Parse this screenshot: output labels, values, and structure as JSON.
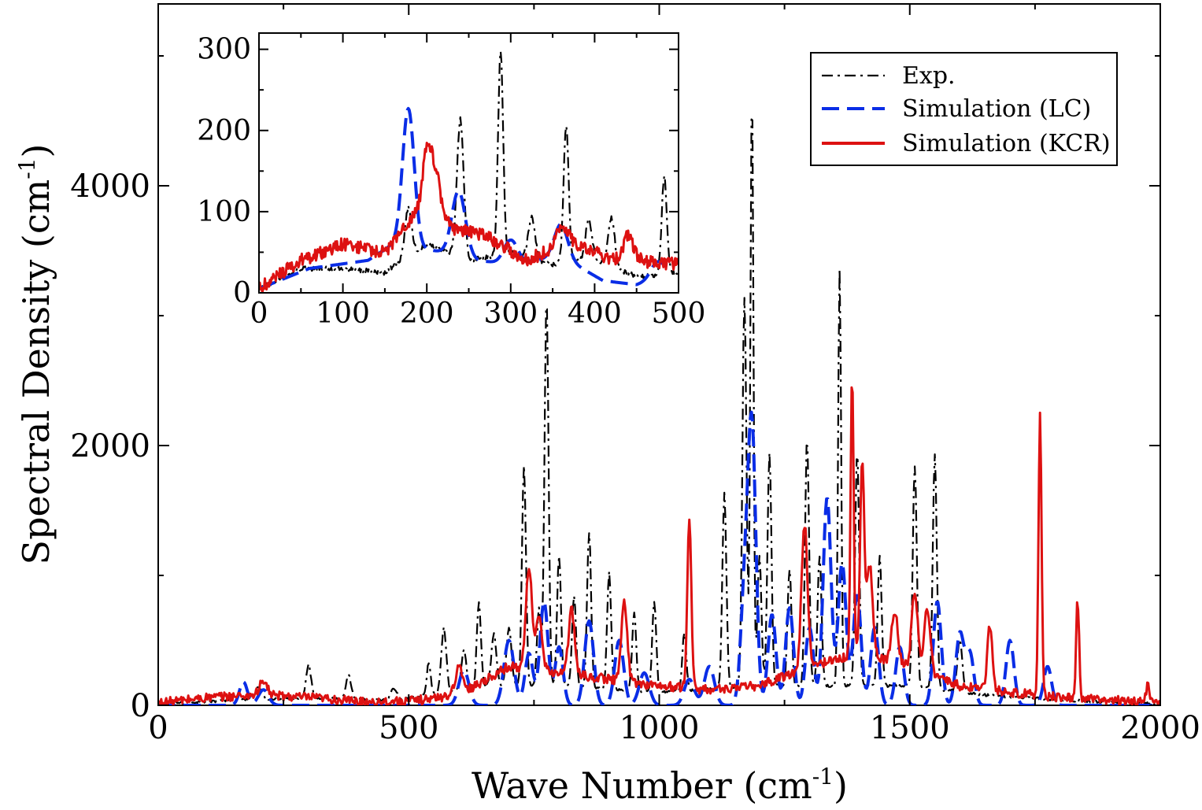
{
  "chart_data": [
    {
      "id": "main",
      "type": "line",
      "title": "",
      "xlabel": "Wave Number (cm",
      "xlabel_sup": "-1",
      "xlabel_end": ")",
      "ylabel": "Spectral Density (cm",
      "ylabel_sup": "-1",
      "ylabel_end": ")",
      "xlim": [
        0,
        2000
      ],
      "ylim": [
        0,
        5400
      ],
      "x_ticks": [
        {
          "value": 0,
          "label": "0"
        },
        {
          "value": 500,
          "label": "500"
        },
        {
          "value": 1000,
          "label": "1000"
        },
        {
          "value": 1500,
          "label": "1500"
        },
        {
          "value": 2000,
          "label": "2000"
        }
      ],
      "y_ticks": [
        {
          "value": 0,
          "label": "0"
        },
        {
          "value": 2000,
          "label": "2000"
        },
        {
          "value": 4000,
          "label": "4000"
        }
      ],
      "grid": false,
      "legend_position": "top-right",
      "series": [
        {
          "name": "Exp.",
          "style": "dash-dot",
          "color": "#000000",
          "baseline": 40,
          "noise": 10,
          "background": [
            [
              0,
              10
            ],
            [
              150,
              40
            ],
            [
              300,
              60
            ],
            [
              450,
              40
            ],
            [
              550,
              80
            ],
            [
              650,
              150
            ],
            [
              800,
              150
            ],
            [
              1000,
              100
            ],
            [
              1200,
              150
            ],
            [
              1500,
              150
            ],
            [
              1650,
              80
            ],
            [
              1800,
              40
            ],
            [
              2000,
              10
            ]
          ],
          "peaks": [
            [
              200,
              100,
              6
            ],
            [
              300,
              250,
              5
            ],
            [
              380,
              180,
              5
            ],
            [
              470,
              80,
              6
            ],
            [
              540,
              250,
              4
            ],
            [
              570,
              500,
              5
            ],
            [
              610,
              300,
              5
            ],
            [
              640,
              660,
              4
            ],
            [
              670,
              400,
              5
            ],
            [
              700,
              450,
              5
            ],
            [
              730,
              1700,
              4
            ],
            [
              760,
              600,
              4
            ],
            [
              775,
              3000,
              4
            ],
            [
              800,
              1000,
              4
            ],
            [
              830,
              700,
              4
            ],
            [
              860,
              1200,
              4
            ],
            [
              900,
              900,
              4
            ],
            [
              950,
              600,
              4
            ],
            [
              990,
              700,
              4
            ],
            [
              1050,
              450,
              4
            ],
            [
              1130,
              1500,
              4
            ],
            [
              1170,
              3000,
              4
            ],
            [
              1185,
              4600,
              3
            ],
            [
              1200,
              1000,
              4
            ],
            [
              1220,
              1800,
              4
            ],
            [
              1260,
              900,
              4
            ],
            [
              1295,
              1900,
              4
            ],
            [
              1320,
              1000,
              4
            ],
            [
              1360,
              3200,
              3
            ],
            [
              1395,
              1800,
              4
            ],
            [
              1440,
              1000,
              4
            ],
            [
              1510,
              1700,
              4
            ],
            [
              1550,
              1800,
              4
            ],
            [
              1600,
              400,
              5
            ]
          ]
        },
        {
          "name": "Simulation (LC)",
          "style": "dashed",
          "color": "#0a2de6",
          "baseline": 40,
          "noise": 0,
          "background": [
            [
              0,
              0
            ],
            [
              2000,
              0
            ]
          ],
          "peaks": [
            [
              170,
              180,
              8
            ],
            [
              210,
              120,
              10
            ],
            [
              610,
              270,
              10
            ],
            [
              700,
              500,
              10
            ],
            [
              740,
              400,
              8
            ],
            [
              770,
              800,
              8
            ],
            [
              800,
              450,
              8
            ],
            [
              860,
              650,
              9
            ],
            [
              920,
              500,
              9
            ],
            [
              970,
              250,
              10
            ],
            [
              1060,
              200,
              10
            ],
            [
              1100,
              300,
              10
            ],
            [
              1170,
              800,
              8
            ],
            [
              1185,
              2100,
              8
            ],
            [
              1225,
              700,
              8
            ],
            [
              1260,
              750,
              8
            ],
            [
              1300,
              600,
              8
            ],
            [
              1335,
              1600,
              8
            ],
            [
              1365,
              1100,
              8
            ],
            [
              1395,
              850,
              8
            ],
            [
              1430,
              600,
              8
            ],
            [
              1480,
              450,
              8
            ],
            [
              1555,
              800,
              8
            ],
            [
              1600,
              550,
              8
            ],
            [
              1620,
              400,
              8
            ],
            [
              1700,
              500,
              8
            ],
            [
              1775,
              300,
              8
            ]
          ]
        },
        {
          "name": "Simulation (KCR)",
          "style": "solid",
          "color": "#dd1111",
          "baseline": 40,
          "noise": 35,
          "background": [
            [
              0,
              20
            ],
            [
              100,
              60
            ],
            [
              200,
              80
            ],
            [
              300,
              60
            ],
            [
              400,
              30
            ],
            [
              500,
              30
            ],
            [
              600,
              80
            ],
            [
              700,
              300
            ],
            [
              800,
              250
            ],
            [
              900,
              200
            ],
            [
              1000,
              150
            ],
            [
              1100,
              120
            ],
            [
              1200,
              150
            ],
            [
              1300,
              300
            ],
            [
              1400,
              400
            ],
            [
              1500,
              300
            ],
            [
              1600,
              150
            ],
            [
              1700,
              100
            ],
            [
              1800,
              60
            ],
            [
              2000,
              20
            ]
          ],
          "peaks": [
            [
              210,
              100,
              8
            ],
            [
              600,
              200,
              8
            ],
            [
              740,
              800,
              6
            ],
            [
              760,
              400,
              6
            ],
            [
              825,
              500,
              6
            ],
            [
              930,
              600,
              6
            ],
            [
              1060,
              1300,
              4
            ],
            [
              1290,
              1100,
              6
            ],
            [
              1385,
              2150,
              3
            ],
            [
              1405,
              1500,
              4
            ],
            [
              1420,
              700,
              6
            ],
            [
              1470,
              400,
              6
            ],
            [
              1510,
              600,
              6
            ],
            [
              1535,
              500,
              6
            ],
            [
              1660,
              500,
              5
            ],
            [
              1760,
              2150,
              3
            ],
            [
              1835,
              750,
              3
            ],
            [
              1975,
              150,
              3
            ]
          ]
        }
      ]
    },
    {
      "id": "inset",
      "type": "line",
      "title": "",
      "xlabel": "",
      "ylabel": "",
      "xlim": [
        0,
        500
      ],
      "ylim": [
        0,
        320
      ],
      "x_ticks": [
        {
          "value": 0,
          "label": "0"
        },
        {
          "value": 100,
          "label": "100"
        },
        {
          "value": 200,
          "label": "200"
        },
        {
          "value": 300,
          "label": "300"
        },
        {
          "value": 400,
          "label": "400"
        },
        {
          "value": 500,
          "label": "500"
        }
      ],
      "y_ticks": [
        {
          "value": 0,
          "label": "0"
        },
        {
          "value": 100,
          "label": "100"
        },
        {
          "value": 200,
          "label": "200"
        },
        {
          "value": 300,
          "label": "300"
        }
      ],
      "grid": false,
      "series": [
        {
          "name": "Exp.",
          "style": "dash-dot",
          "color": "#000000",
          "baseline": 0,
          "noise": 3,
          "background": [
            [
              0,
              5
            ],
            [
              50,
              30
            ],
            [
              100,
              30
            ],
            [
              150,
              25
            ],
            [
              200,
              60
            ],
            [
              250,
              40
            ],
            [
              300,
              50
            ],
            [
              350,
              35
            ],
            [
              400,
              40
            ],
            [
              450,
              20
            ],
            [
              500,
              25
            ]
          ],
          "peaks": [
            [
              178,
              60,
              4
            ],
            [
              240,
              170,
              4
            ],
            [
              288,
              250,
              3
            ],
            [
              325,
              50,
              4
            ],
            [
              366,
              170,
              3
            ],
            [
              393,
              50,
              4
            ],
            [
              420,
              60,
              4
            ],
            [
              483,
              120,
              3
            ]
          ]
        },
        {
          "name": "Simulation (LC)",
          "style": "dashed",
          "color": "#0a2de6",
          "baseline": 0,
          "noise": 0,
          "background": [
            [
              0,
              5
            ],
            [
              60,
              30
            ],
            [
              130,
              40
            ],
            [
              160,
              60
            ],
            [
              220,
              50
            ],
            [
              260,
              40
            ],
            [
              300,
              35
            ],
            [
              360,
              45
            ],
            [
              410,
              15
            ],
            [
              450,
              10
            ],
            [
              480,
              20
            ],
            [
              500,
              40
            ]
          ],
          "peaks": [
            [
              178,
              170,
              7
            ],
            [
              238,
              80,
              8
            ],
            [
              300,
              30,
              8
            ],
            [
              360,
              40,
              8
            ],
            [
              475,
              20,
              8
            ]
          ]
        },
        {
          "name": "Simulation (KCR)",
          "style": "solid",
          "color": "#dd1111",
          "baseline": 0,
          "noise": 8,
          "background": [
            [
              0,
              5
            ],
            [
              50,
              40
            ],
            [
              100,
              60
            ],
            [
              150,
              50
            ],
            [
              180,
              90
            ],
            [
              200,
              110
            ],
            [
              230,
              80
            ],
            [
              270,
              70
            ],
            [
              320,
              40
            ],
            [
              370,
              65
            ],
            [
              420,
              40
            ],
            [
              450,
              40
            ],
            [
              500,
              35
            ]
          ],
          "peaks": [
            [
              200,
              60,
              5
            ],
            [
              210,
              50,
              6
            ],
            [
              360,
              20,
              6
            ],
            [
              440,
              30,
              6
            ]
          ]
        }
      ]
    }
  ],
  "legend": [
    {
      "label": "Exp.",
      "style": "dash-dot",
      "color": "#000000"
    },
    {
      "label": "Simulation (LC)",
      "style": "dashed",
      "color": "#0a2de6"
    },
    {
      "label": "Simulation (KCR)",
      "style": "solid",
      "color": "#dd1111"
    }
  ]
}
